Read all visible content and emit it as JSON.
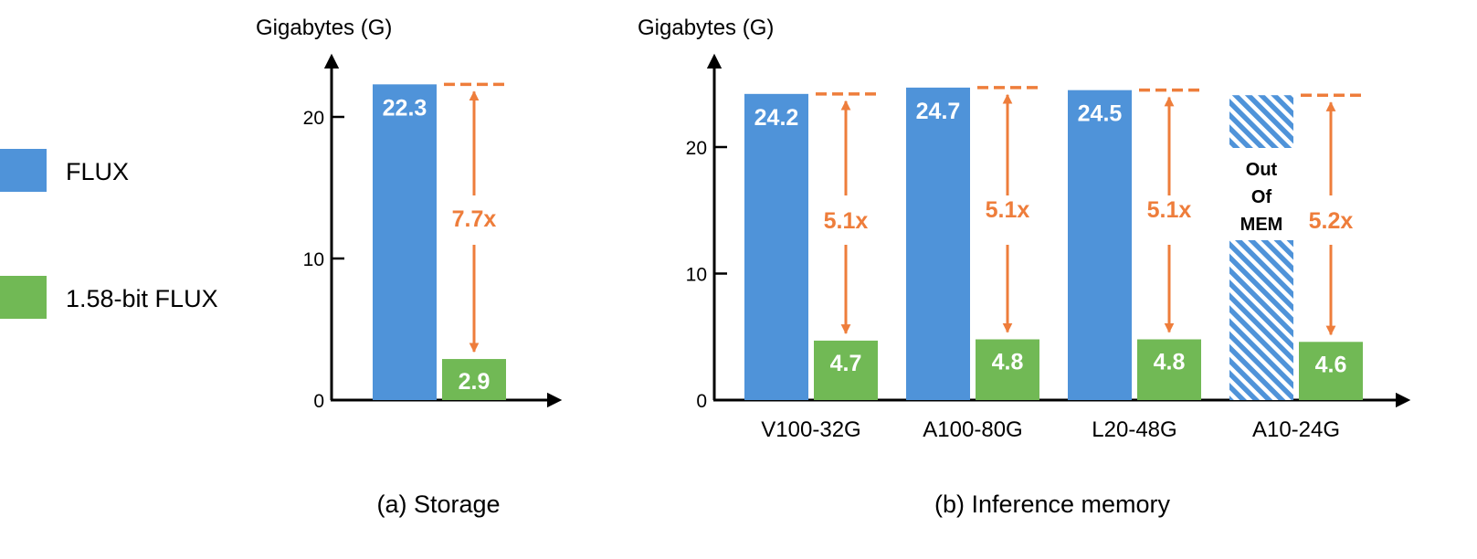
{
  "legend": {
    "items": [
      {
        "label": "FLUX",
        "color": "#4f93d9"
      },
      {
        "label": "1.58-bit FLUX",
        "color": "#71b955"
      }
    ]
  },
  "colors": {
    "flux": "#4f93d9",
    "flux158": "#71b955",
    "ratio": "#ee7d3b",
    "axis": "#000000",
    "bar_label": "#ffffff",
    "oom_label": "#000000"
  },
  "chart_data": [
    {
      "type": "bar",
      "caption": "(a) Storage",
      "ylabel": "Gigabytes (G)",
      "ylim": [
        0,
        23.5
      ],
      "yticks": [
        0,
        10,
        20
      ],
      "categories": [
        ""
      ],
      "series": [
        {
          "name": "FLUX",
          "values": [
            22.3
          ]
        },
        {
          "name": "1.58-bit FLUX",
          "values": [
            2.9
          ]
        }
      ],
      "value_labels": {
        "FLUX": [
          "22.3"
        ],
        "1.58-bit FLUX": [
          "2.9"
        ]
      },
      "ratios": [
        "7.7x"
      ]
    },
    {
      "type": "bar",
      "caption": "(b) Inference memory",
      "ylabel": "Gigabytes (G)",
      "ylim": [
        0,
        26
      ],
      "yticks": [
        0,
        10,
        20
      ],
      "categories": [
        "V100-32G",
        "A100-80G",
        "L20-48G",
        "A10-24G"
      ],
      "series": [
        {
          "name": "FLUX",
          "values": [
            24.2,
            24.7,
            24.5,
            24.1
          ]
        },
        {
          "name": "1.58-bit FLUX",
          "values": [
            4.7,
            4.8,
            4.8,
            4.6
          ]
        }
      ],
      "value_labels": {
        "FLUX": [
          "24.2",
          "24.7",
          "24.5",
          ""
        ],
        "1.58-bit FLUX": [
          "4.7",
          "4.8",
          "4.8",
          "4.6"
        ]
      },
      "ratios": [
        "5.1x",
        "5.1x",
        "5.1x",
        "5.2x"
      ],
      "out_of_memory": [
        false,
        false,
        false,
        true
      ],
      "oom_label": [
        "Out",
        "Of",
        "MEM"
      ]
    }
  ]
}
